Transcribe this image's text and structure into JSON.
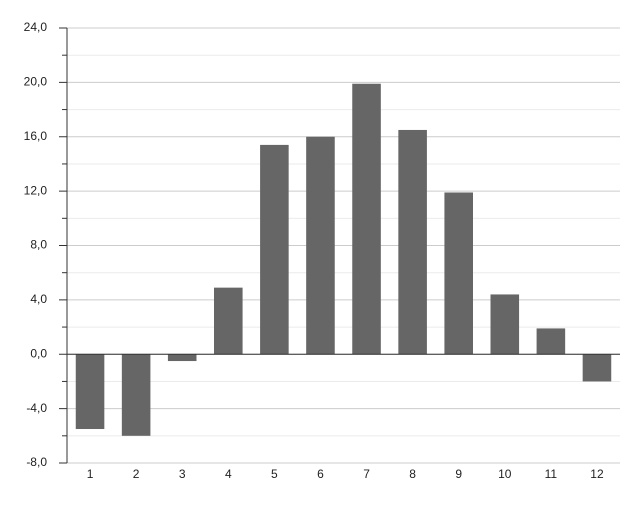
{
  "chart_data": {
    "type": "bar",
    "categories": [
      "1",
      "2",
      "3",
      "4",
      "5",
      "6",
      "7",
      "8",
      "9",
      "10",
      "11",
      "12"
    ],
    "values": [
      -5.5,
      -6.0,
      -0.5,
      4.9,
      15.4,
      16.0,
      19.9,
      16.5,
      11.9,
      4.4,
      1.9,
      -2.0
    ],
    "color": "#666666",
    "ylim": [
      -8,
      24
    ],
    "yticks": [
      {
        "value": -8,
        "label": "-8,0"
      },
      {
        "value": -4,
        "label": "-4,0"
      },
      {
        "value": 0,
        "label": "0,0"
      },
      {
        "value": 4,
        "label": "4,0"
      },
      {
        "value": 8,
        "label": "8,0"
      },
      {
        "value": 12,
        "label": "12,0"
      },
      {
        "value": 16,
        "label": "16,0"
      },
      {
        "value": 20,
        "label": "20,0"
      },
      {
        "value": 24,
        "label": "24,0"
      }
    ],
    "minor_yticks": [
      -6,
      -2,
      2,
      6,
      10,
      14,
      18,
      22
    ],
    "grid": true
  }
}
